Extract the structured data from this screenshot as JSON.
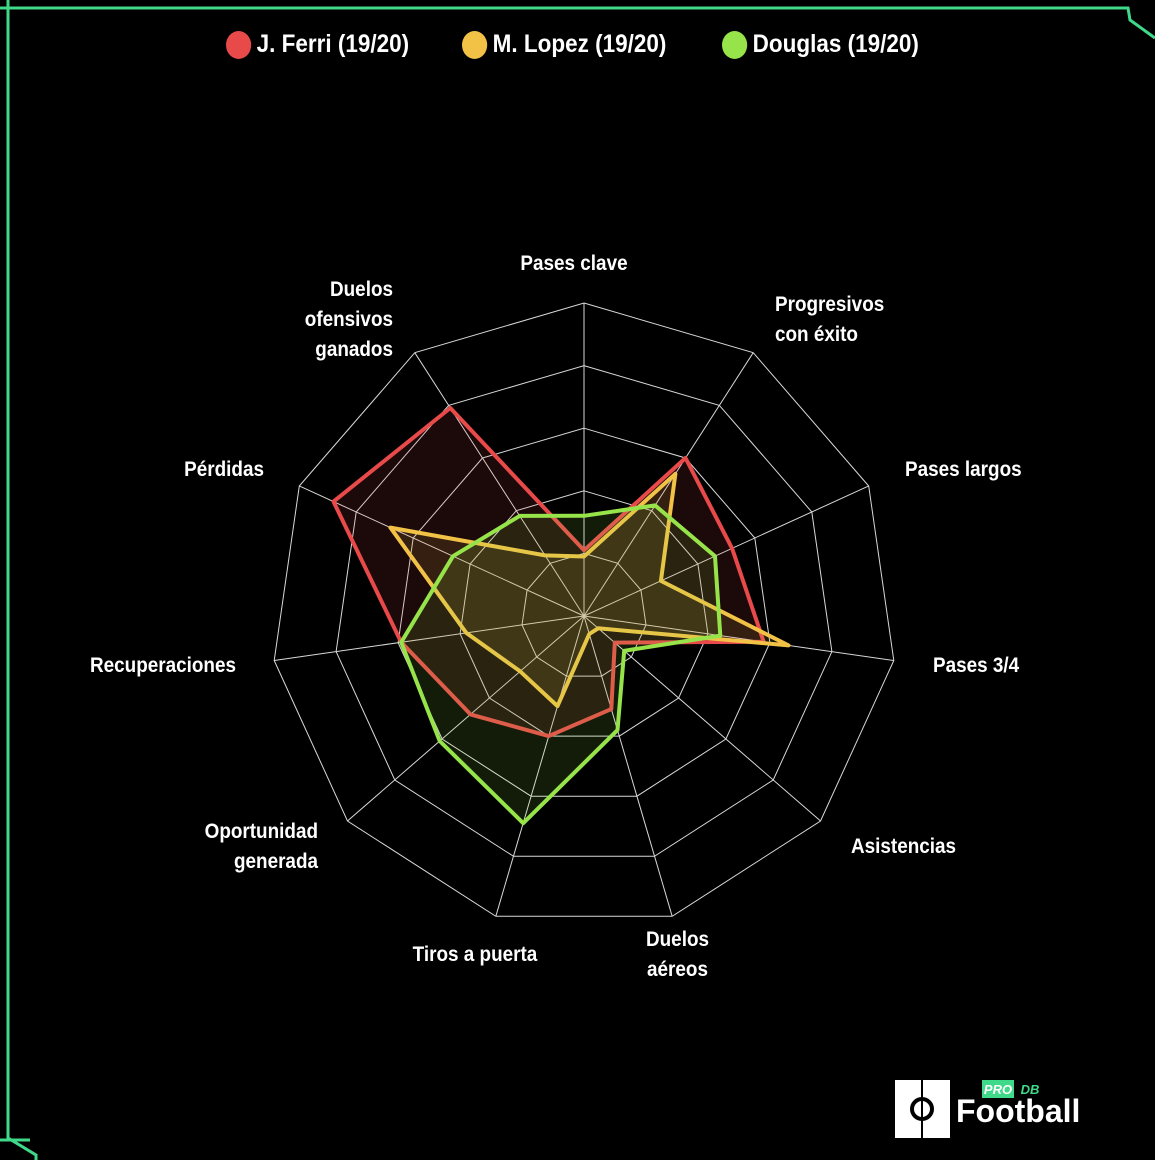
{
  "chart_data": {
    "type": "radar",
    "categories": [
      "Pases clave",
      "Progresivos\ncon éxito",
      "Pases largos",
      "Pases 3/4",
      "Asistencias",
      "Duelos\naéreos",
      "Tiros a puerta",
      "Oportunidad\ngenerada",
      "Recuperaciones",
      "Pérdidas",
      "Duelos\nofensivos\nganados"
    ],
    "series": [
      {
        "name": "J. Ferri (19/20)",
        "color": "#e84a4a",
        "values": [
          21,
          60,
          52,
          58,
          13,
          31,
          40,
          48,
          59,
          88,
          79
        ]
      },
      {
        "name": "M. Lopez (19/20)",
        "color": "#f2c247",
        "values": [
          19,
          54,
          27,
          66,
          6,
          6,
          30,
          27,
          38,
          68,
          23
        ]
      },
      {
        "name": "Douglas (19/20)",
        "color": "#97e34a",
        "values": [
          32,
          42,
          46,
          44,
          17,
          38,
          69,
          61,
          59,
          46,
          38
        ]
      }
    ],
    "rlim": [
      0,
      100
    ],
    "rticks": [
      20,
      40,
      60,
      80,
      100
    ],
    "grid": true,
    "legend": "top"
  },
  "logo": {
    "pro": "PRO",
    "db": "DB",
    "name": "Football"
  }
}
